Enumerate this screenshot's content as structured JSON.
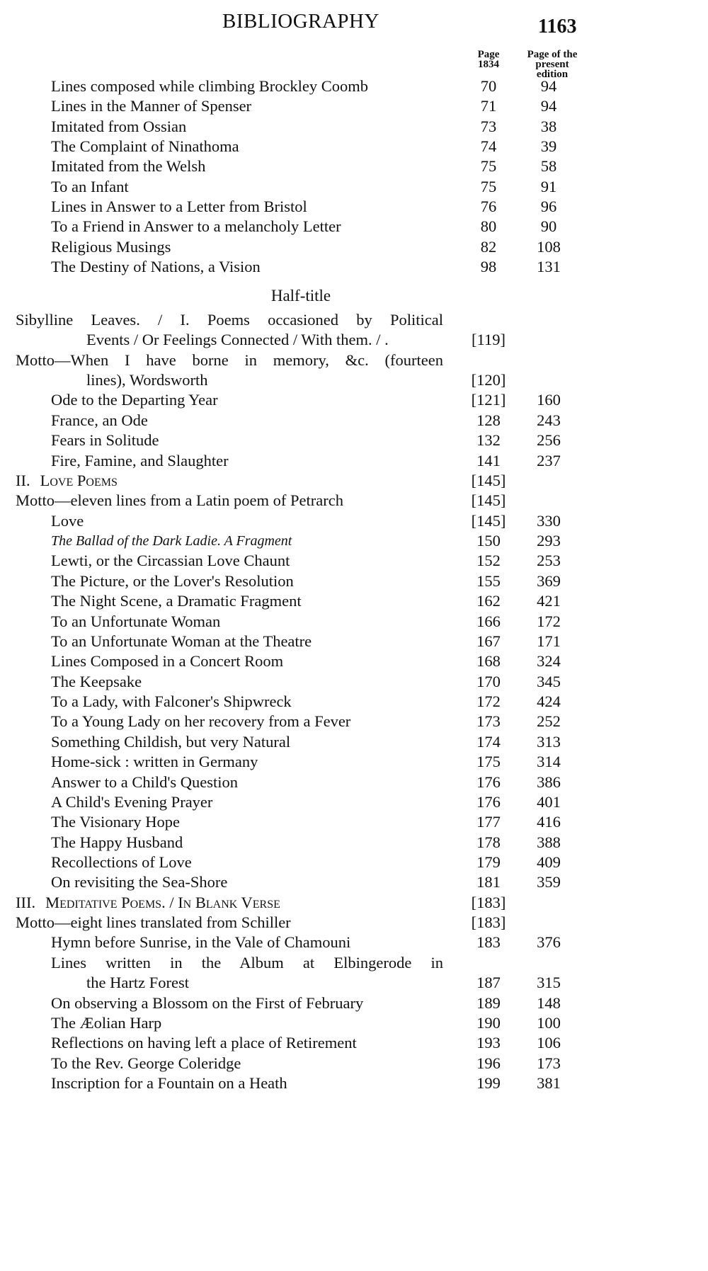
{
  "header": {
    "title": "BIBLIOGRAPHY",
    "page_number": "1163"
  },
  "columns": {
    "page_1834": [
      "Page",
      "1834"
    ],
    "present": [
      "Page of the",
      "present",
      "edition"
    ]
  },
  "half_title": "Half-title",
  "rows": [
    {
      "text": "Lines composed while climbing Brockley Coomb",
      "indent": 1,
      "leader": true,
      "p1834": "70",
      "present": "94"
    },
    {
      "text": "Lines in the Manner of Spenser",
      "indent": 1,
      "leader": true,
      "p1834": "71",
      "present": "94"
    },
    {
      "text": "Imitated from Ossian",
      "indent": 1,
      "leader": true,
      "p1834": "73",
      "present": "38"
    },
    {
      "text": "The Complaint of Ninathoma",
      "indent": 1,
      "leader": true,
      "p1834": "74",
      "present": "39"
    },
    {
      "text": "Imitated from the Welsh",
      "indent": 1,
      "leader": true,
      "p1834": "75",
      "present": "58"
    },
    {
      "text": "To an Infant",
      "indent": 1,
      "leader": true,
      "p1834": "75",
      "present": "91"
    },
    {
      "text": "Lines in Answer to a Letter from Bristol",
      "indent": 1,
      "leader": true,
      "p1834": "76",
      "present": "96"
    },
    {
      "text": "To a Friend in Answer to a melancholy Letter",
      "indent": 1,
      "leader": true,
      "p1834": "80",
      "present": "90"
    },
    {
      "text": "Religious Musings",
      "indent": 1,
      "leader": true,
      "p1834": "82",
      "present": "108"
    },
    {
      "text": "The Destiny of Nations, a Vision",
      "indent": 1,
      "leader": true,
      "p1834": "98",
      "present": "131"
    },
    {
      "text": "Sibylline Leaves. / I. Poems occasioned by Political",
      "indent": 0,
      "justify": true,
      "p1834": "",
      "present": ""
    },
    {
      "text": "Events / Or Feelings Connected / With them. / .",
      "indent": 2,
      "leader": false,
      "p1834": "[119]",
      "present": ""
    },
    {
      "text": "Motto—When I have borne in memory, &c. (fourteen",
      "indent": 0,
      "justify": true,
      "p1834": "",
      "present": ""
    },
    {
      "text": "lines), Wordsworth",
      "indent": 2,
      "leader": true,
      "p1834": "[120]",
      "present": ""
    },
    {
      "text": "Ode to the Departing Year",
      "indent": 1,
      "leader": true,
      "p1834": "[121]",
      "present": "160"
    },
    {
      "text": "France, an Ode",
      "indent": 1,
      "leader": true,
      "p1834": "128",
      "present": "243"
    },
    {
      "text": "Fears in Solitude",
      "indent": 1,
      "leader": true,
      "p1834": "132",
      "present": "256"
    },
    {
      "text": "Fire, Famine, and Slaughter",
      "indent": 1,
      "leader": true,
      "p1834": "141",
      "present": "237"
    },
    {
      "prefix": "II.",
      "text": "Love Poems",
      "style": "smallcaps",
      "indent": 0,
      "leader": true,
      "p1834": "[145]",
      "present": ""
    },
    {
      "text": "Motto—eleven lines from a Latin poem of Petrarch",
      "indent": 0,
      "leader": true,
      "p1834": "[145]",
      "present": ""
    },
    {
      "text": "Love",
      "indent": 1,
      "leader": true,
      "p1834": "[145]",
      "present": "330"
    },
    {
      "text": "The Ballad of the Dark Ladie.  A Fragment",
      "style": "italic",
      "indent": 1,
      "leader": true,
      "p1834": "150",
      "present": "293"
    },
    {
      "text": "Lewti, or the Circassian Love Chaunt",
      "indent": 1,
      "leader": true,
      "p1834": "152",
      "present": "253"
    },
    {
      "text": "The Picture, or the Lover's Resolution",
      "indent": 1,
      "leader": true,
      "p1834": "155",
      "present": "369"
    },
    {
      "text": "The Night Scene, a Dramatic Fragment",
      "indent": 1,
      "leader": true,
      "p1834": "162",
      "present": "421"
    },
    {
      "text": "To an Unfortunate Woman",
      "indent": 1,
      "leader": true,
      "p1834": "166",
      "present": "172"
    },
    {
      "text": "To an Unfortunate Woman at the Theatre",
      "indent": 1,
      "leader": true,
      "p1834": "167",
      "present": "171"
    },
    {
      "text": "Lines Composed in a Concert Room",
      "indent": 1,
      "leader": true,
      "p1834": "168",
      "present": "324"
    },
    {
      "text": "The Keepsake",
      "indent": 1,
      "leader": true,
      "p1834": "170",
      "present": "345"
    },
    {
      "text": "To a Lady, with Falconer's Shipwreck",
      "indent": 1,
      "leader": true,
      "p1834": "172",
      "present": "424"
    },
    {
      "text": "To a Young Lady on her recovery from a Fever",
      "indent": 1,
      "leader": true,
      "p1834": "173",
      "present": "252"
    },
    {
      "text": "Something Childish, but very Natural",
      "indent": 1,
      "leader": true,
      "p1834": "174",
      "present": "313"
    },
    {
      "text": "Home-sick : written in Germany",
      "indent": 1,
      "leader": true,
      "p1834": "175",
      "present": "314"
    },
    {
      "text": "Answer to a Child's Question",
      "indent": 1,
      "leader": true,
      "p1834": "176",
      "present": "386"
    },
    {
      "text": "A Child's Evening Prayer",
      "indent": 1,
      "leader": true,
      "p1834": "176",
      "present": "401"
    },
    {
      "text": "The Visionary Hope",
      "indent": 1,
      "leader": true,
      "p1834": "177",
      "present": "416"
    },
    {
      "text": "The Happy Husband",
      "indent": 1,
      "leader": true,
      "p1834": "178",
      "present": "388"
    },
    {
      "text": "Recollections of Love",
      "indent": 1,
      "leader": true,
      "p1834": "179",
      "present": "409"
    },
    {
      "text": "On revisiting the Sea-Shore",
      "indent": 1,
      "leader": true,
      "p1834": "181",
      "present": "359"
    },
    {
      "prefix": "III.",
      "text": "Meditative Poems. / In Blank Verse",
      "style": "smallcaps",
      "indent": 0,
      "leader": true,
      "p1834": "[183]",
      "present": ""
    },
    {
      "text": "Motto—eight lines translated from Schiller",
      "indent": 0,
      "leader": true,
      "p1834": "[183]",
      "present": ""
    },
    {
      "text": "Hymn before Sunrise, in the Vale of Chamouni",
      "indent": 1,
      "leader": true,
      "p1834": "183",
      "present": "376"
    },
    {
      "text": "Lines written in the Album at Elbingerode in",
      "indent": 1,
      "justify": true,
      "p1834": "",
      "present": ""
    },
    {
      "text": "the Hartz Forest",
      "indent": 2,
      "leader": true,
      "p1834": "187",
      "present": "315"
    },
    {
      "text": "On observing a Blossom on the First of February",
      "indent": 1,
      "leader": false,
      "p1834": "189",
      "present": "148"
    },
    {
      "text": "The Æolian Harp",
      "indent": 1,
      "leader": true,
      "p1834": "190",
      "present": "100"
    },
    {
      "text": "Reflections on having left a place of Retirement",
      "indent": 1,
      "leader": true,
      "p1834": "193",
      "present": "106"
    },
    {
      "text": "To the Rev. George Coleridge",
      "indent": 1,
      "leader": true,
      "p1834": "196",
      "present": "173"
    },
    {
      "text": "Inscription for a Fountain on a Heath",
      "indent": 1,
      "leader": true,
      "p1834": "199",
      "present": "381"
    }
  ]
}
